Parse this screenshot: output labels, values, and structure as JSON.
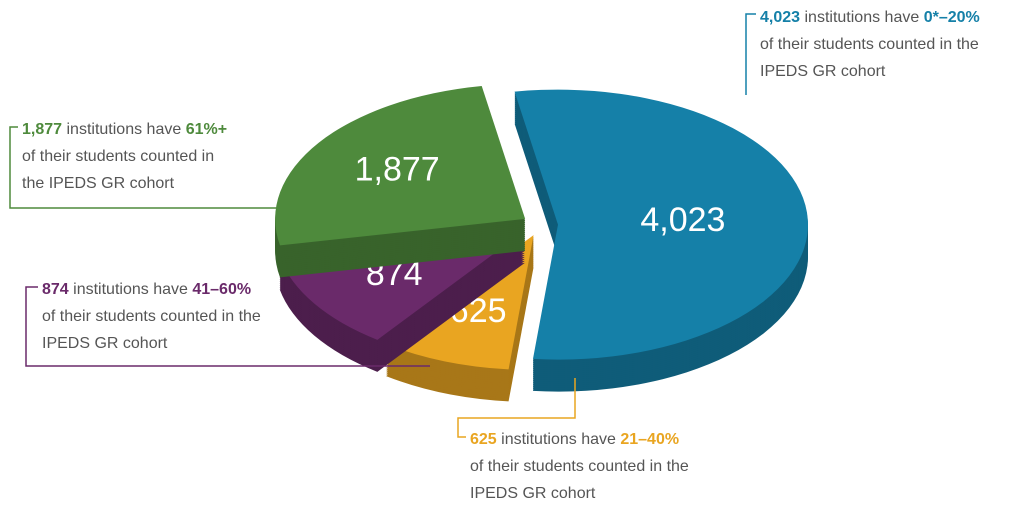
{
  "chart_data": {
    "type": "pie",
    "categories": [
      "0*–20%",
      "21–40%",
      "41–60%",
      "61%+"
    ],
    "values": [
      4023,
      625,
      874,
      1877
    ],
    "value_labels": [
      "4,023",
      "625",
      "874",
      "1,877"
    ],
    "colors": [
      "#1580a8",
      "#e9a521",
      "#6a2a6a",
      "#4e8a3c"
    ],
    "annotations": [
      {
        "lines": [
          "institutions have",
          "of their students counted in the",
          "IPEDS GR cohort"
        ]
      },
      {
        "lines": [
          "institutions have",
          "of their students counted in the",
          "IPEDS GR cohort"
        ]
      },
      {
        "lines": [
          "institutions have",
          "of their students counted in the",
          "IPEDS GR cohort"
        ]
      },
      {
        "lines": [
          "institutions have",
          "of their students counted in",
          "the IPEDS GR cohort"
        ]
      }
    ]
  }
}
